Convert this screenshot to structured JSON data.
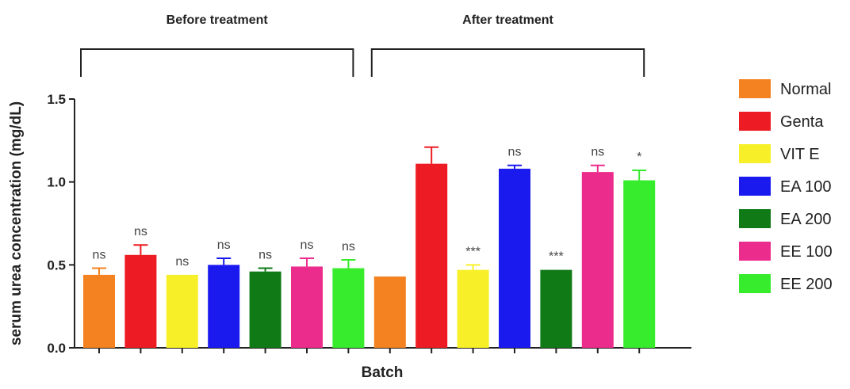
{
  "chart_data": {
    "type": "bar",
    "title": "",
    "xlabel": "Batch",
    "ylabel": "serum urea concentration (mg/dL)",
    "ylim": [
      0,
      1.5
    ],
    "yticks": [
      "0.0",
      "0.5",
      "1.0",
      "1.5"
    ],
    "grid": false,
    "legend_position": "right",
    "groups": [
      "Before treatment",
      "After treatment"
    ],
    "series": [
      {
        "name": "Normal",
        "color": "#f58220"
      },
      {
        "name": "Genta",
        "color": "#ed1c24"
      },
      {
        "name": "VIT E",
        "color": "#f7f028"
      },
      {
        "name": "EA 100",
        "color": "#1a1aef"
      },
      {
        "name": "EA 200",
        "color": "#0f7a16"
      },
      {
        "name": "EE 100",
        "color": "#ec2c8c"
      },
      {
        "name": "EE 200",
        "color": "#36ec2c"
      }
    ],
    "bars": [
      {
        "group": "Before treatment",
        "series": "Normal",
        "value": 0.44,
        "error": 0.04,
        "sig": "ns"
      },
      {
        "group": "Before treatment",
        "series": "Genta",
        "value": 0.56,
        "error": 0.06,
        "sig": "ns"
      },
      {
        "group": "Before treatment",
        "series": "VIT E",
        "value": 0.44,
        "error": 0.0,
        "sig": "ns"
      },
      {
        "group": "Before treatment",
        "series": "EA 100",
        "value": 0.5,
        "error": 0.04,
        "sig": "ns"
      },
      {
        "group": "Before treatment",
        "series": "EA 200",
        "value": 0.46,
        "error": 0.02,
        "sig": "ns"
      },
      {
        "group": "Before treatment",
        "series": "EE 100",
        "value": 0.49,
        "error": 0.05,
        "sig": "ns"
      },
      {
        "group": "Before treatment",
        "series": "EE 200",
        "value": 0.48,
        "error": 0.05,
        "sig": "ns"
      },
      {
        "group": "After treatment",
        "series": "Normal",
        "value": 0.43,
        "error": 0.0,
        "sig": ""
      },
      {
        "group": "After treatment",
        "series": "Genta",
        "value": 1.11,
        "error": 0.1,
        "sig": ""
      },
      {
        "group": "After treatment",
        "series": "VIT E",
        "value": 0.47,
        "error": 0.03,
        "sig": "***"
      },
      {
        "group": "After treatment",
        "series": "EA 100",
        "value": 1.08,
        "error": 0.02,
        "sig": "ns"
      },
      {
        "group": "After treatment",
        "series": "EA 200",
        "value": 0.47,
        "error": 0.0,
        "sig": "***"
      },
      {
        "group": "After treatment",
        "series": "EE 100",
        "value": 1.06,
        "error": 0.04,
        "sig": "ns"
      },
      {
        "group": "After treatment",
        "series": "EE 200",
        "value": 1.01,
        "error": 0.06,
        "sig": "*"
      }
    ]
  }
}
